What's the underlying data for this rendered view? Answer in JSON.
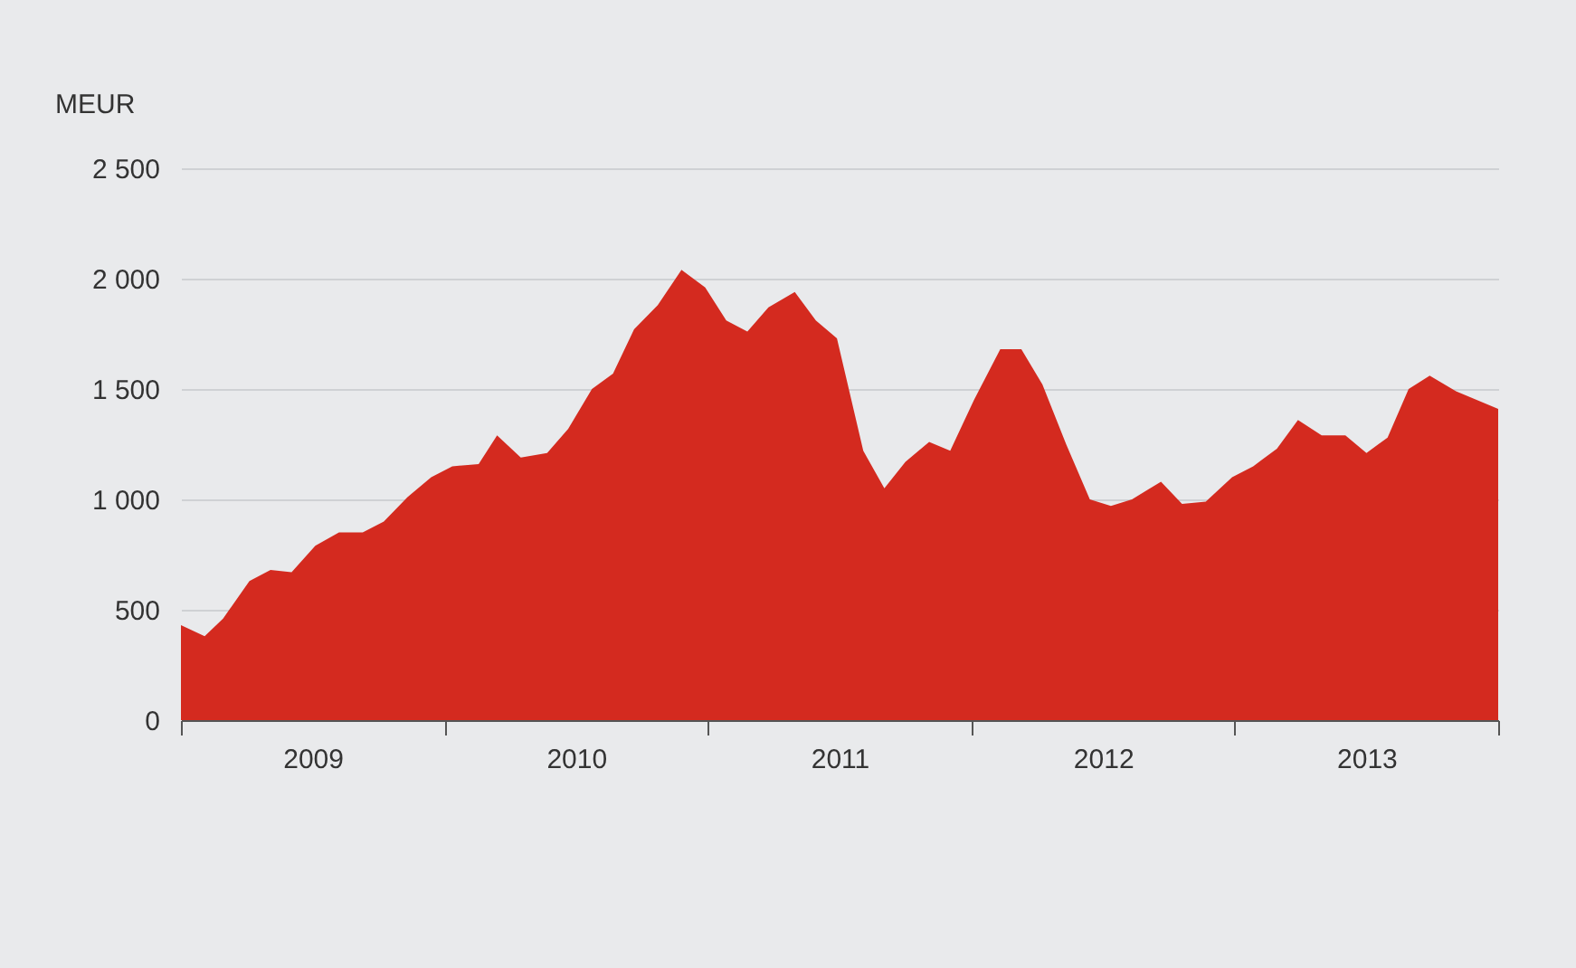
{
  "chart_data": {
    "type": "area",
    "ylabel": "MEUR",
    "x": [
      2009.0,
      2009.09,
      2009.16,
      2009.26,
      2009.34,
      2009.42,
      2009.51,
      2009.6,
      2009.69,
      2009.77,
      2009.86,
      2009.95,
      2010.03,
      2010.13,
      2010.2,
      2010.29,
      2010.39,
      2010.47,
      2010.56,
      2010.64,
      2010.72,
      2010.81,
      2010.9,
      2010.99,
      2011.07,
      2011.15,
      2011.23,
      2011.33,
      2011.41,
      2011.49,
      2011.59,
      2011.67,
      2011.75,
      2011.84,
      2011.92,
      2012.01,
      2012.11,
      2012.19,
      2012.27,
      2012.36,
      2012.45,
      2012.53,
      2012.61,
      2012.72,
      2012.8,
      2012.89,
      2012.99,
      2013.07,
      2013.16,
      2013.24,
      2013.33,
      2013.42,
      2013.5,
      2013.58,
      2013.66,
      2013.74,
      2013.84,
      2014.0
    ],
    "series": [
      {
        "color": "#d42a1f",
        "values": [
          430,
          380,
          460,
          630,
          680,
          670,
          790,
          850,
          850,
          900,
          1010,
          1100,
          1150,
          1160,
          1290,
          1190,
          1210,
          1320,
          1500,
          1570,
          1770,
          1880,
          2040,
          1960,
          1810,
          1760,
          1870,
          1940,
          1810,
          1730,
          1220,
          1050,
          1170,
          1260,
          1220,
          1450,
          1680,
          1680,
          1520,
          1250,
          1000,
          970,
          1000,
          1080,
          980,
          990,
          1100,
          1150,
          1230,
          1360,
          1290,
          1290,
          1210,
          1280,
          1500,
          1560,
          1490,
          1410
        ]
      }
    ],
    "xlim": [
      2009,
      2014
    ],
    "xticks": [
      {
        "value": 2009,
        "label": null
      },
      {
        "value": 2009.5,
        "label": "2009"
      },
      {
        "value": 2010,
        "label": null
      },
      {
        "value": 2010.5,
        "label": "2010"
      },
      {
        "value": 2011,
        "label": null
      },
      {
        "value": 2011.5,
        "label": "2011"
      },
      {
        "value": 2012,
        "label": null
      },
      {
        "value": 2012.5,
        "label": "2012"
      },
      {
        "value": 2013,
        "label": null
      },
      {
        "value": 2013.5,
        "label": "2013"
      },
      {
        "value": 2014,
        "label": null
      }
    ],
    "ylim": [
      0,
      2500
    ],
    "yticks": [
      0,
      500,
      {
        "value": 1000,
        "label": "1 000"
      },
      {
        "value": 1500,
        "label": "1 500"
      },
      {
        "value": 2000,
        "label": "2 000"
      },
      {
        "value": 2500,
        "label": "2 500"
      }
    ],
    "grid": "y"
  }
}
